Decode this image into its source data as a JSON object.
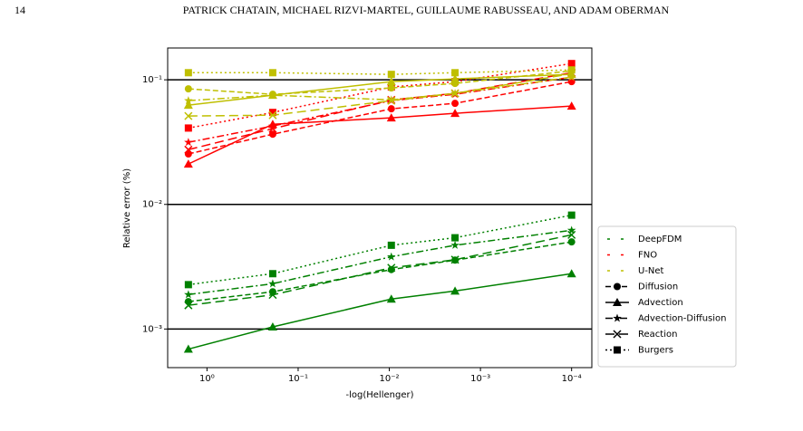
{
  "header": {
    "page_number": "14",
    "authors": "PATRICK CHATAIN, MICHAEL RIZVI-MARTEL, GUILLAUME RABUSSEAU, AND ADAM OBERMAN"
  },
  "chart_data": {
    "type": "line",
    "x_label": "-log(Hellenger)",
    "y_label": "Relative error (%)",
    "x_log": true,
    "y_log": true,
    "grid": true,
    "grid_color": "#000000",
    "legend": "right",
    "x": [
      1.6,
      0.19,
      0.0095,
      0.0019,
      0.0001
    ],
    "xlim": [
      2.7,
      6e-05
    ],
    "xticks": [
      {
        "value": 1,
        "label": "10⁰"
      },
      {
        "value": 0.1,
        "label": "10⁻¹"
      },
      {
        "value": 0.01,
        "label": "10⁻²"
      },
      {
        "value": 0.001,
        "label": "10⁻³"
      },
      {
        "value": 0.0001,
        "label": "10⁻⁴"
      }
    ],
    "ylim": [
      0.00049,
      0.18
    ],
    "yticks": [
      {
        "value": 0.001,
        "label": "10⁻³"
      },
      {
        "value": 0.01,
        "label": "10⁻²"
      },
      {
        "value": 0.1,
        "label": "10⁻¹"
      }
    ],
    "pdes": [
      {
        "name": "Diffusion",
        "dash": "6,3",
        "marker": "circle"
      },
      {
        "name": "Advection",
        "dash": "none",
        "marker": "triangle"
      },
      {
        "name": "Advection-Diffusion",
        "dash": "8,3,2,3",
        "marker": "star"
      },
      {
        "name": "Reaction",
        "dash": "10,5",
        "marker": "x"
      },
      {
        "name": "Burgers",
        "dash": "2,3",
        "marker": "square"
      }
    ],
    "series": [
      {
        "name": "DeepFDM",
        "color": "#008000",
        "lines": [
          {
            "values": [
              0.00166,
              0.00199,
              0.003,
              0.00357,
              0.005
            ]
          },
          {
            "values": [
              0.00069,
              0.00104,
              0.00174,
              0.00202,
              0.00278
            ]
          },
          {
            "values": [
              0.00189,
              0.00231,
              0.0038,
              0.0047,
              0.0062
            ]
          },
          {
            "values": [
              0.00155,
              0.00188,
              0.0031,
              0.0036,
              0.0057
            ]
          },
          {
            "values": [
              0.00227,
              0.00278,
              0.0047,
              0.0054,
              0.0082
            ]
          }
        ]
      },
      {
        "name": "FNO",
        "color": "#ff0000",
        "lines": [
          {
            "values": [
              0.0254,
              0.0366,
              0.0585,
              0.0647,
              0.0967
            ]
          },
          {
            "values": [
              0.0211,
              0.044,
              0.0495,
              0.0538,
              0.0615
            ]
          },
          {
            "values": [
              0.0315,
              0.0426,
              0.068,
              0.0765,
              0.105
            ]
          },
          {
            "values": [
              0.0275,
              0.0405,
              0.069,
              0.0778,
              0.114
            ]
          },
          {
            "values": [
              0.041,
              0.0547,
              0.0875,
              0.0967,
              0.135
            ]
          }
        ]
      },
      {
        "name": "U-Net",
        "color": "#bfbf00",
        "lines": [
          {
            "values": [
              0.0846,
              0.0765,
              0.086,
              0.0935,
              0.118
            ]
          },
          {
            "values": [
              0.0626,
              0.0752,
              0.0967,
              0.1017,
              0.1105
            ]
          },
          {
            "values": [
              0.068,
              0.0752,
              0.069,
              0.0778,
              0.105
            ]
          },
          {
            "values": [
              0.0512,
              0.052,
              0.068,
              0.0778,
              0.112
            ]
          },
          {
            "values": [
              0.114,
              0.114,
              0.1105,
              0.114,
              0.12
            ]
          }
        ]
      }
    ]
  }
}
